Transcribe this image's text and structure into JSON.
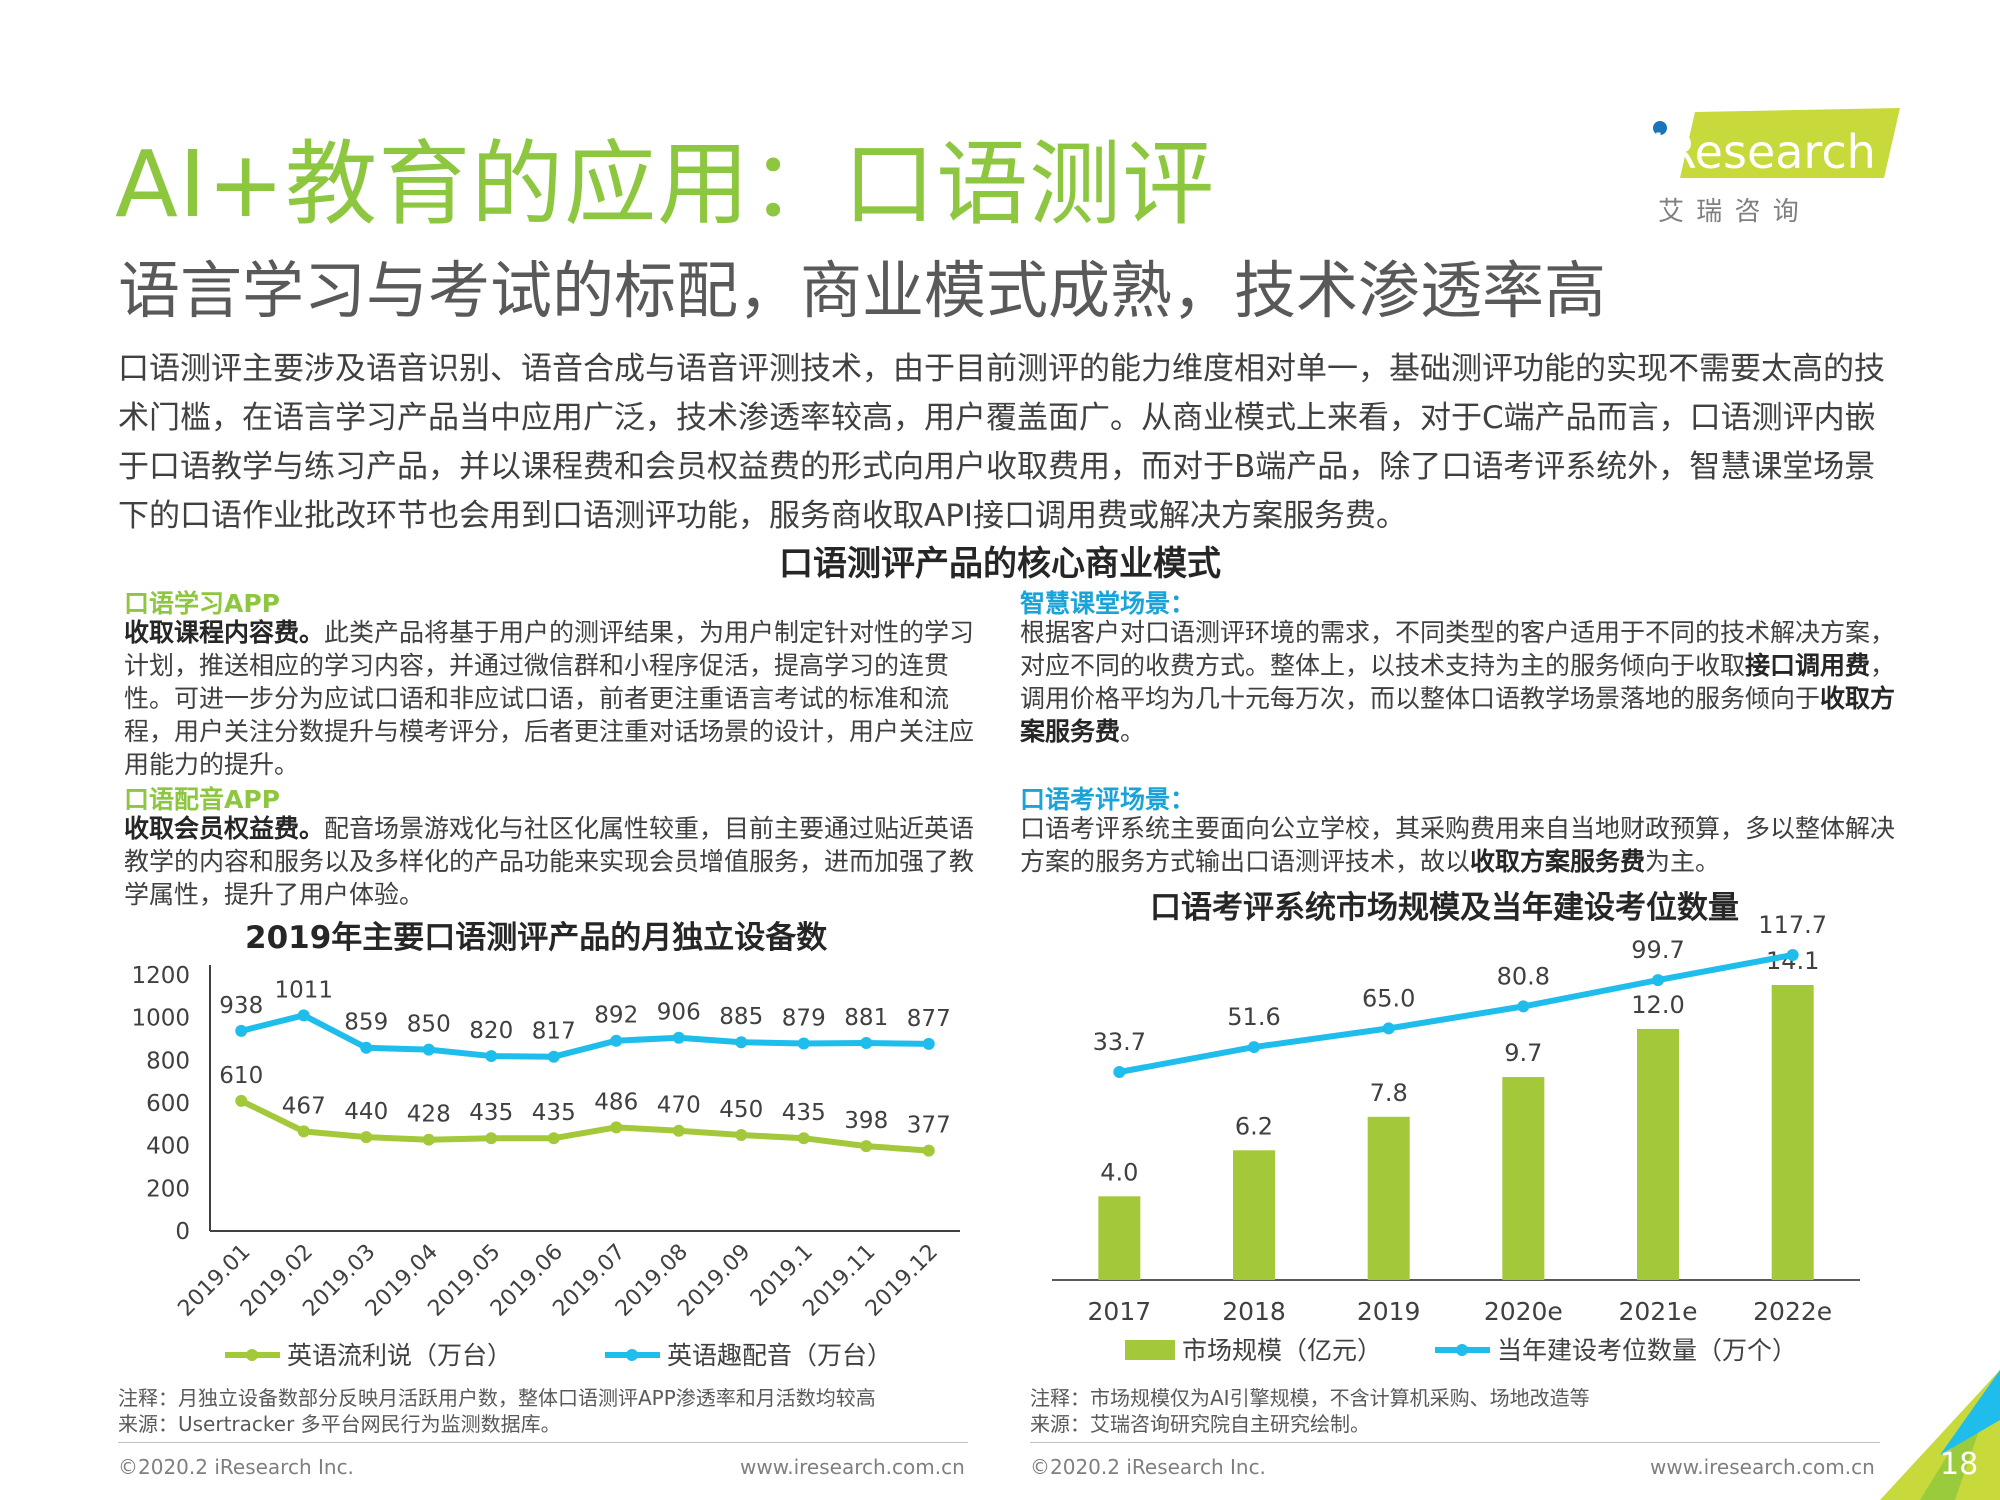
{
  "header": {
    "title": "AI+教育的应用：口语测评",
    "subtitle": "语言学习与考试的标配，商业模式成熟，技术渗透率高",
    "intro": "口语测评主要涉及语音识别、语音合成与语音评测技术，由于目前测评的能力维度相对单一，基础测评功能的实现不需要太高的技术门槛，在语言学习产品当中应用广泛，技术渗透率较高，用户覆盖面广。从商业模式上来看，对于C端产品而言，口语测评内嵌于口语教学与练习产品，并以课程费和会员权益费的形式向用户收取费用，而对于B端产品，除了口语考评系统外，智慧课堂场景下的口语作业批改环节也会用到口语测评功能，服务商收取API接口调用费或解决方案服务费。"
  },
  "logo": {
    "brand": "iResearch",
    "cn": "艾 瑞 咨 询",
    "accent": "#c8d93b"
  },
  "core_model": {
    "heading": "口语测评产品的核心商业模式",
    "sections": {
      "app_learning": {
        "title": "口语学习APP",
        "bold": "收取课程内容费。",
        "text": "此类产品将基于用户的测评结果，为用户制定针对性的学习计划，推送相应的学习内容，并通过微信群和小程序促活，提高学习的连贯性。可进一步分为应试口语和非应试口语，前者更注重语言考试的标准和流程，用户关注分数提升与模考评分，后者更注重对话场景的设计，用户关注应用能力的提升。"
      },
      "app_dubbing": {
        "title": "口语配音APP",
        "bold": "收取会员权益费。",
        "text": "配音场景游戏化与社区化属性较重，目前主要通过贴近英语教学的内容和服务以及多样化的产品功能来实现会员增值服务，进而加强了教学属性，提升了用户体验。"
      },
      "smart_class": {
        "title": "智慧课堂场景：",
        "t1": "根据客户对口语测评环境的需求，不同类型的客户适用于不同的技术解决方案，对应不同的收费方式。整体上，以技术支持为主的服务倾向于收取",
        "b1": "接口调用费",
        "t2": "，调用价格平均为几十元每万次，而以整体口语教学场景落地的服务倾向于",
        "b2": "收取方案服务费",
        "t3": "。"
      },
      "exam": {
        "title": "口语考评场景：",
        "t1": "口语考评系统主要面向公立学校，其采购费用来自当地财政预算，多以整体解决方案的服务方式输出口语测评技术，故以",
        "b1": "收取方案服务费",
        "t2": "为主。"
      }
    }
  },
  "chart_data": [
    {
      "type": "line",
      "title": "2019年主要口语测评产品的月独立设备数",
      "categories": [
        "2019.01",
        "2019.02",
        "2019.03",
        "2019.04",
        "2019.05",
        "2019.06",
        "2019.07",
        "2019.08",
        "2019.09",
        "2019.1",
        "2019.11",
        "2019.12"
      ],
      "series": [
        {
          "name": "英语流利说（万台）",
          "color": "#a3c83a",
          "values": [
            610,
            467,
            440,
            428,
            435,
            435,
            486,
            470,
            450,
            435,
            398,
            377
          ]
        },
        {
          "name": "英语趣配音（万台）",
          "color": "#1fbdeb",
          "values": [
            938,
            1011,
            859,
            850,
            820,
            817,
            892,
            906,
            885,
            879,
            881,
            877
          ]
        }
      ],
      "yticks": [
        0,
        200,
        400,
        600,
        800,
        1000,
        1200
      ],
      "ylim": [
        0,
        1200
      ],
      "legend": "bottom"
    },
    {
      "type": "bar",
      "title": "口语考评系统市场规模及当年建设考位数量",
      "categories": [
        "2017",
        "2018",
        "2019",
        "2020e",
        "2021e",
        "2022e"
      ],
      "series": [
        {
          "name": "市场规模（亿元）",
          "type": "bar",
          "color": "#a3c83a",
          "values": [
            4.0,
            6.2,
            7.8,
            9.7,
            12.0,
            14.1
          ]
        },
        {
          "name": "当年建设考位数量（万个）",
          "type": "line",
          "color": "#1fbdeb",
          "values": [
            33.7,
            51.6,
            65.0,
            80.8,
            99.7,
            117.7
          ]
        }
      ],
      "labels_bar": [
        "4.0",
        "6.2",
        "7.8",
        "9.7",
        "12.0",
        "14.1"
      ],
      "labels_line": [
        "33.7",
        "51.6",
        "65.0",
        "80.8",
        "99.7",
        "117.7"
      ],
      "legend": "bottom"
    }
  ],
  "notes": {
    "left": {
      "note": "注释：月独立设备数部分反映月活跃用户数，整体口语测评APP渗透率和月活数均较高",
      "source": "来源：Usertracker 多平台网民行为监测数据库。"
    },
    "right": {
      "note": "注释：市场规模仅为AI引擎规模，不含计算机采购、场地改造等",
      "source": "来源：艾瑞咨询研究院自主研究绘制。"
    }
  },
  "footer": {
    "copyright_left": "©2020.2 iResearch Inc.",
    "url_left": "www.iresearch.com.cn",
    "copyright_right": "©2020.2 iResearch Inc.",
    "url_right": "www.iresearch.com.cn",
    "page_number": "18"
  }
}
